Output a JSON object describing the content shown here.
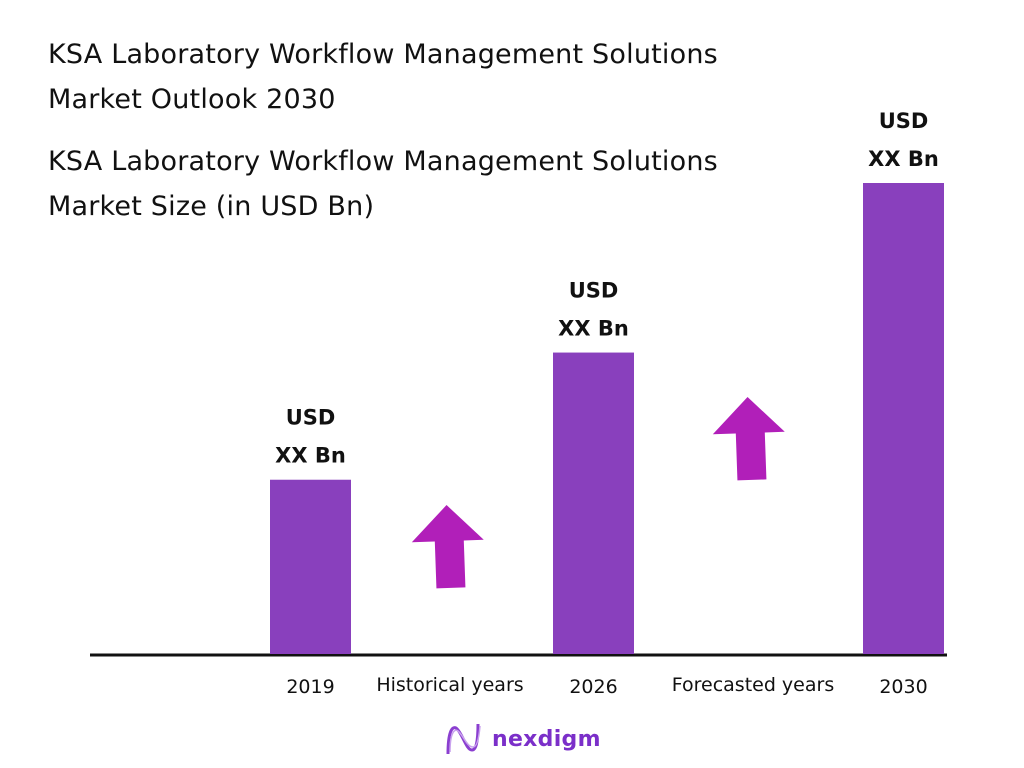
{
  "header": {
    "title": "KSA Laboratory Workflow Management Solutions Market Outlook 2030"
  },
  "chart_data": {
    "type": "bar",
    "title": "KSA Laboratory Workflow Management Solutions Market Size (in USD Bn)",
    "categories": [
      "2019",
      "2026",
      "2030"
    ],
    "values": [
      null,
      null,
      null
    ],
    "relative_heights_pct_of_max": [
      37,
      64,
      100
    ],
    "data_labels": [
      {
        "line1": "USD",
        "line2": "XX Bn"
      },
      {
        "line1": "USD",
        "line2": "XX Bn"
      },
      {
        "line1": "USD",
        "line2": "XX Bn"
      }
    ],
    "period_labels": [
      "Historical years",
      "Forecasted years"
    ],
    "grid": false,
    "legend": "none",
    "bar_color": "#8940bd",
    "arrow_color": "#b11fb9"
  },
  "brand": {
    "name": "nexdigm",
    "color": "#7b2fc9"
  }
}
